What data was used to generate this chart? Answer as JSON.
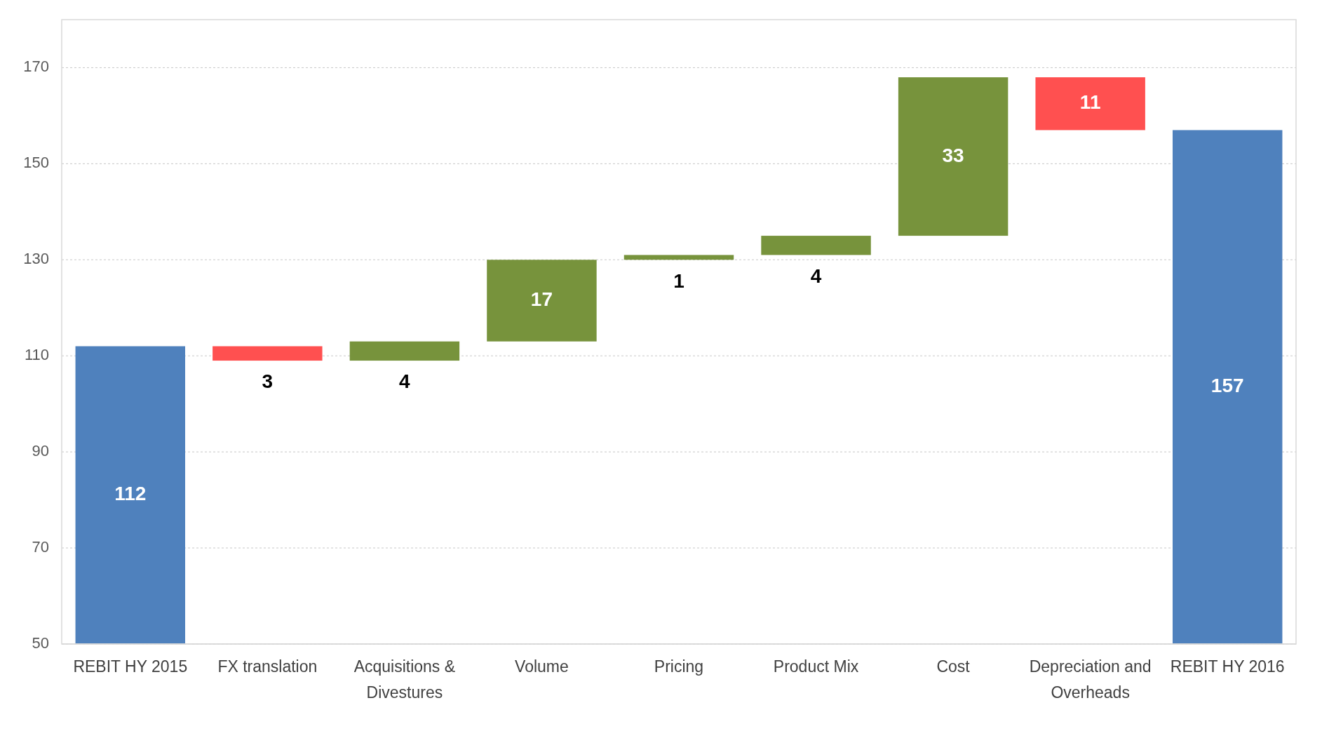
{
  "chart_data": {
    "type": "bar",
    "categories": [
      "REBIT HY 2015",
      "FX translation",
      "Acquisitions & Divestures",
      "Volume",
      "Pricing",
      "Product Mix",
      "Cost",
      "Depreciation and Overheads",
      "REBIT HY 2016"
    ],
    "base": [
      50,
      109,
      109,
      113,
      130,
      131,
      135,
      157,
      50
    ],
    "values": [
      62,
      3,
      4,
      17,
      1,
      4,
      33,
      11,
      107
    ],
    "value_labels": [
      "112",
      "3",
      "4",
      "17",
      "1",
      "4",
      "33",
      "11",
      "157"
    ],
    "colors": [
      "#4f81bd",
      "#ff5050",
      "#77933c",
      "#77933c",
      "#77933c",
      "#77933c",
      "#77933c",
      "#ff5050",
      "#4f81bd"
    ],
    "ylim": [
      50,
      180
    ],
    "yticks": [
      50,
      70,
      90,
      110,
      130,
      150,
      170
    ],
    "grid": "y"
  }
}
